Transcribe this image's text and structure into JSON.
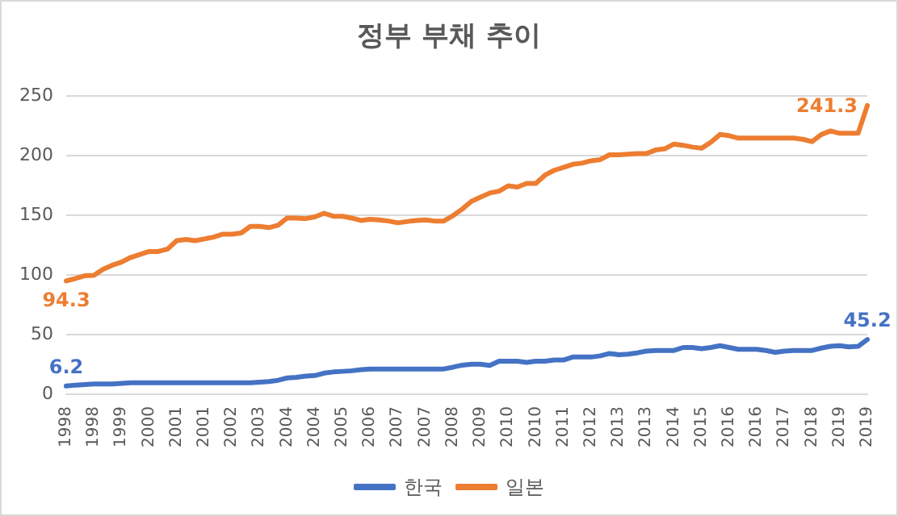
{
  "chart_data": {
    "type": "line",
    "title": "정부 부채 추이",
    "categories": [
      "1998",
      null,
      null,
      "1998",
      null,
      null,
      "1999",
      null,
      null,
      "2000",
      null,
      null,
      "2001",
      null,
      null,
      "2001",
      null,
      null,
      "2002",
      null,
      null,
      "2003",
      null,
      null,
      "2004",
      null,
      null,
      "2004",
      null,
      null,
      "2005",
      null,
      null,
      "2006",
      null,
      null,
      "2007",
      null,
      null,
      "2007",
      null,
      null,
      "2008",
      null,
      null,
      "2009",
      null,
      null,
      "2010",
      null,
      null,
      "2010",
      null,
      null,
      "2011",
      null,
      null,
      "2012",
      null,
      null,
      "2013",
      null,
      null,
      "2013",
      null,
      null,
      "2014",
      null,
      null,
      "2015",
      null,
      null,
      "2016",
      null,
      null,
      "2016",
      null,
      null,
      "2017",
      null,
      null,
      "2018",
      null,
      null,
      "2019",
      null,
      null,
      "2019"
    ],
    "series": [
      {
        "name": "한국",
        "color": "#4472c4",
        "values": [
          6.2,
          7,
          7.5,
          8,
          8,
          8,
          8.5,
          9,
          9,
          9,
          9,
          9,
          9,
          9,
          9,
          9,
          9,
          9,
          9,
          9,
          9,
          9.5,
          10,
          11,
          13,
          13.5,
          14.5,
          15,
          17,
          18,
          18.5,
          19,
          20,
          20.5,
          20.5,
          20.5,
          20.5,
          20.5,
          20.5,
          20.5,
          20.5,
          20.5,
          22,
          23.7,
          24.5,
          24.5,
          23.5,
          27,
          27,
          27,
          26,
          27,
          27,
          28,
          28,
          30.5,
          30.5,
          30.5,
          31.5,
          33.5,
          32.5,
          33,
          34,
          35.5,
          36,
          36,
          36,
          38.5,
          38.5,
          37.5,
          38.5,
          40,
          38.5,
          37,
          37,
          37,
          36,
          34.5,
          35.5,
          36,
          36,
          36,
          38,
          39.5,
          40,
          39,
          39.5,
          45.2
        ],
        "value_labels": [
          "6.2",
          null,
          null,
          null,
          null,
          null,
          null,
          null,
          null,
          null,
          null,
          null,
          null,
          null,
          null,
          null,
          null,
          null,
          null,
          null,
          null,
          null,
          null,
          null,
          null,
          null,
          null,
          null,
          null,
          null,
          null,
          null,
          null,
          null,
          null,
          null,
          null,
          null,
          null,
          null,
          null,
          null,
          null,
          null,
          null,
          null,
          null,
          null,
          null,
          null,
          null,
          null,
          null,
          null,
          null,
          null,
          null,
          null,
          null,
          null,
          null,
          null,
          null,
          null,
          null,
          null,
          null,
          null,
          null,
          null,
          null,
          null,
          null,
          null,
          null,
          null,
          null,
          null,
          null,
          null,
          null,
          null,
          null,
          null,
          null,
          null,
          null,
          "45.2"
        ]
      },
      {
        "name": "일본",
        "color": "#ed7d31",
        "values": [
          94.3,
          96.3,
          98.6,
          99,
          104,
          107.5,
          110,
          114,
          116.5,
          119,
          119,
          121,
          128,
          129,
          128,
          129.5,
          131,
          133.5,
          133.5,
          134.5,
          140,
          140,
          139,
          141,
          147,
          147,
          146.5,
          148,
          151,
          148.5,
          148.5,
          147,
          145,
          146,
          145.5,
          144.5,
          143,
          144,
          145,
          145.5,
          144.5,
          144.5,
          149,
          154.5,
          161,
          164.5,
          168,
          169.5,
          174,
          173,
          176,
          176,
          183,
          187,
          189.5,
          192,
          193,
          195,
          196,
          200,
          200,
          200.5,
          201,
          201,
          204,
          205,
          209,
          208,
          206.5,
          205.5,
          210.5,
          217,
          216,
          214,
          214,
          214,
          214,
          214,
          214,
          214,
          213,
          211,
          217,
          220,
          218,
          218,
          218,
          241.3
        ],
        "value_labels": [
          "94.3",
          null,
          null,
          null,
          null,
          null,
          null,
          null,
          null,
          null,
          null,
          null,
          null,
          null,
          null,
          null,
          null,
          null,
          null,
          null,
          null,
          null,
          null,
          null,
          null,
          null,
          null,
          null,
          null,
          null,
          null,
          null,
          null,
          null,
          null,
          null,
          null,
          null,
          null,
          null,
          null,
          null,
          null,
          null,
          null,
          null,
          null,
          null,
          null,
          null,
          null,
          null,
          null,
          null,
          null,
          null,
          null,
          null,
          null,
          null,
          null,
          null,
          null,
          null,
          null,
          null,
          null,
          null,
          null,
          null,
          null,
          null,
          null,
          null,
          null,
          null,
          null,
          null,
          null,
          null,
          null,
          null,
          null,
          null,
          null,
          null,
          null,
          "241.3"
        ]
      }
    ],
    "ylim": [
      0,
      250
    ],
    "yticks": [
      0,
      50,
      100,
      150,
      200,
      250
    ],
    "grid": "y",
    "legend": "bottom",
    "marker": "none",
    "line_style": "solid"
  }
}
